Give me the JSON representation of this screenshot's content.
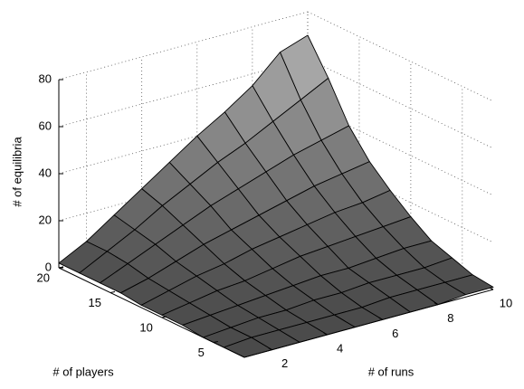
{
  "chart_data": {
    "type": "surface",
    "xlabel": "# of runs",
    "ylabel": "# of players",
    "zlabel": "# of equilibria",
    "x": [
      1,
      2,
      3,
      4,
      5,
      6,
      7,
      8,
      9,
      10
    ],
    "y": [
      2,
      4,
      6,
      8,
      10,
      12,
      14,
      16,
      18,
      20
    ],
    "z": [
      [
        0,
        0,
        0,
        0,
        0,
        0,
        0,
        0,
        1,
        1
      ],
      [
        0,
        1,
        1,
        1,
        1,
        1,
        2,
        2,
        2,
        2
      ],
      [
        0,
        1,
        2,
        2,
        3,
        3,
        4,
        4,
        4,
        5
      ],
      [
        1,
        2,
        3,
        4,
        5,
        6,
        6,
        7,
        8,
        8
      ],
      [
        1,
        3,
        5,
        6,
        8,
        10,
        11,
        12,
        13,
        14
      ],
      [
        1,
        4,
        7,
        9,
        12,
        14,
        16,
        18,
        19,
        21
      ],
      [
        2,
        5,
        9,
        13,
        16,
        19,
        22,
        25,
        27,
        29
      ],
      [
        2,
        7,
        12,
        17,
        22,
        26,
        30,
        34,
        37,
        40
      ],
      [
        2,
        8,
        14,
        21,
        27,
        33,
        38,
        44,
        50,
        56
      ],
      [
        2,
        8,
        16,
        24,
        32,
        40,
        47,
        55,
        66,
        70
      ]
    ],
    "xlim": [
      1,
      10
    ],
    "ylim": [
      2,
      20
    ],
    "zlim": [
      0,
      80
    ],
    "xticks": [
      2,
      4,
      6,
      8,
      10
    ],
    "yticks": [
      5,
      10,
      15,
      20
    ],
    "zticks": [
      0,
      20,
      40,
      60,
      80
    ],
    "grid": true,
    "colormap": [
      "#4a4a4a",
      "#c4c4c4"
    ]
  }
}
